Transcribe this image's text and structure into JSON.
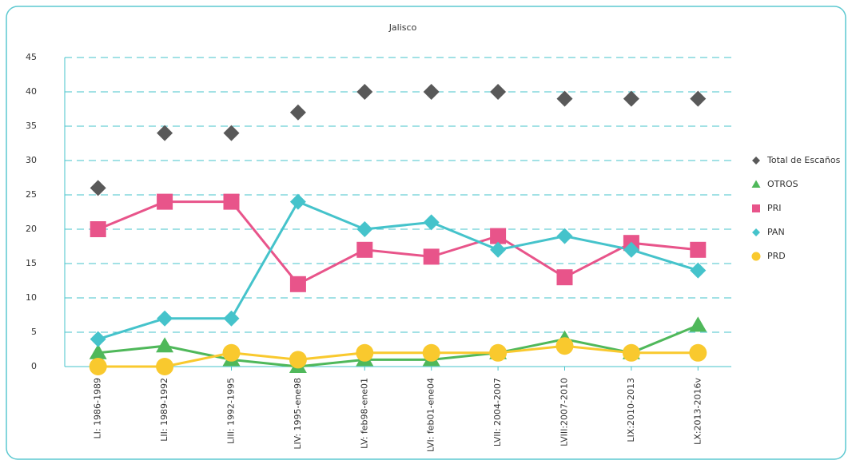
{
  "chart_data": {
    "type": "line",
    "title": "Jalisco",
    "categories": [
      "LI: 1986-1989",
      "LII: 1989-1992",
      "LIII: 1992-1995",
      "LIV: 1995-ene98",
      "LV: feb98-ene01",
      "LVI: feb01-ene04",
      "LVII: 2004-2007",
      "LVIII:2007-2010",
      "LIX:2010-2013",
      "LX:2013-2016v"
    ],
    "series": [
      {
        "name": "Total de Escaños",
        "color": "#595959",
        "marker": "diamond",
        "line": false,
        "values": [
          26,
          34,
          34,
          37,
          40,
          40,
          40,
          39,
          39,
          39
        ]
      },
      {
        "name": "OTROS",
        "color": "#4fb85a",
        "marker": "triangle",
        "line": true,
        "values": [
          2,
          3,
          1,
          0,
          1,
          1,
          2,
          4,
          2,
          6
        ]
      },
      {
        "name": "PRI",
        "color": "#e8548a",
        "marker": "square",
        "line": true,
        "values": [
          20,
          24,
          24,
          12,
          17,
          16,
          19,
          13,
          18,
          17
        ]
      },
      {
        "name": "PAN",
        "color": "#45c3cb",
        "marker": "diamond",
        "line": true,
        "values": [
          4,
          7,
          7,
          24,
          20,
          21,
          17,
          19,
          17,
          14
        ]
      },
      {
        "name": "PRD",
        "color": "#f9c92e",
        "marker": "circle",
        "line": true,
        "values": [
          0,
          0,
          2,
          1,
          2,
          2,
          2,
          3,
          2,
          2
        ]
      }
    ],
    "ylim": [
      0,
      45
    ],
    "yticks": [
      0,
      5,
      10,
      15,
      20,
      25,
      30,
      35,
      40,
      45
    ],
    "grid": true,
    "legend": "right"
  }
}
